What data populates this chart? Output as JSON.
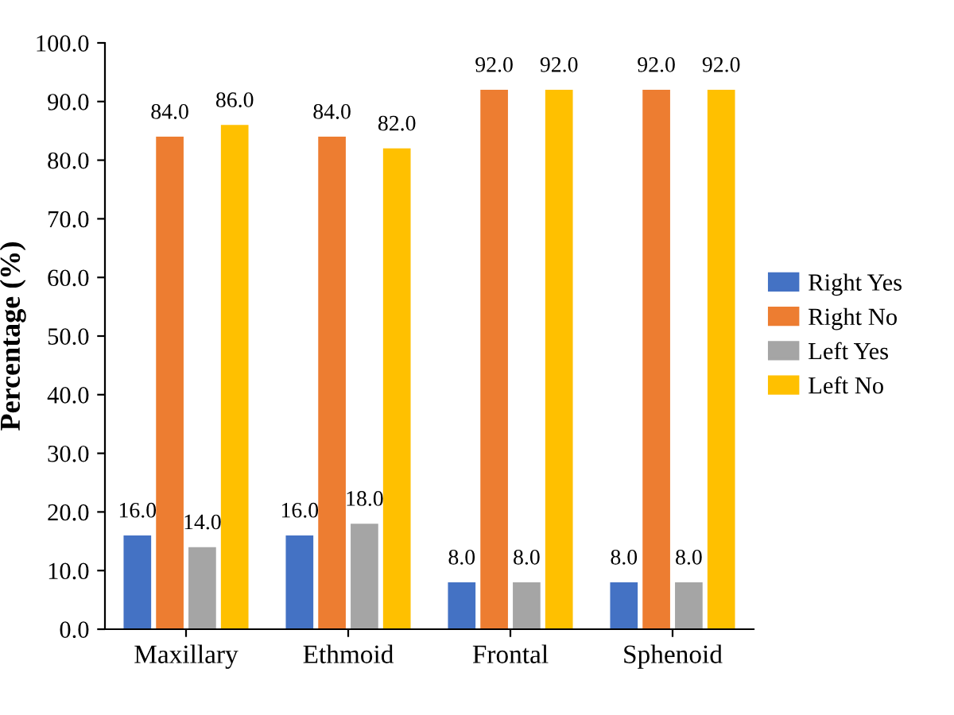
{
  "chart_data": {
    "type": "bar",
    "ylabel": "Percentage (%)",
    "categories": [
      "Maxillary",
      "Ethmoid",
      "Frontal",
      "Sphenoid"
    ],
    "series": [
      {
        "name": "Right Yes",
        "color": "#4472c4",
        "values": [
          16,
          16,
          8,
          8
        ],
        "value_labels": [
          "16.0",
          "16.0",
          "8.0",
          "8.0"
        ]
      },
      {
        "name": "Right No",
        "color": "#ed7d31",
        "values": [
          84,
          84,
          92,
          92
        ],
        "value_labels": [
          "84.0",
          "84.0",
          "92.0",
          "92.0"
        ]
      },
      {
        "name": "Left Yes",
        "color": "#a5a5a5",
        "values": [
          14,
          18,
          8,
          8
        ],
        "value_labels": [
          "14.0",
          "18.0",
          "8.0",
          "8.0"
        ]
      },
      {
        "name": "Left No",
        "color": "#ffc000",
        "values": [
          86,
          82,
          92,
          92
        ],
        "value_labels": [
          "86.0",
          "82.0",
          "92.0",
          "92.0"
        ]
      }
    ],
    "ylim": [
      0,
      100
    ],
    "yticks": [
      {
        "value": 0,
        "label": "0.0"
      },
      {
        "value": 10,
        "label": "10.0"
      },
      {
        "value": 20,
        "label": "20.0"
      },
      {
        "value": 30,
        "label": "30.0"
      },
      {
        "value": 40,
        "label": "40.0"
      },
      {
        "value": 50,
        "label": "50.0"
      },
      {
        "value": 60,
        "label": "60.0"
      },
      {
        "value": 70,
        "label": "70.0"
      },
      {
        "value": 80,
        "label": "80.0"
      },
      {
        "value": 90,
        "label": "90.0"
      },
      {
        "value": 100,
        "label": "100.0"
      }
    ],
    "grid": false,
    "legend": "right"
  }
}
